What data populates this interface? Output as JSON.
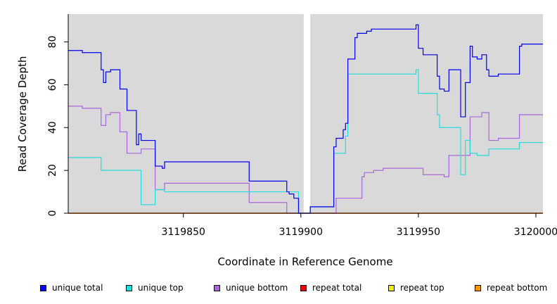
{
  "chart_data": {
    "type": "line",
    "title": "",
    "xlabel": "Coordinate in Reference Genome",
    "ylabel": "Read Coverage Depth",
    "xlim": [
      3119801,
      3120003
    ],
    "ylim": [
      0,
      93
    ],
    "x_ticks": [
      3119850,
      3119900,
      3119950,
      3120000
    ],
    "x_tick_labels": [
      "3119850",
      "3119900",
      "3119950",
      "3120000"
    ],
    "y_ticks": [
      0,
      20,
      40,
      60,
      80
    ],
    "y_tick_labels": [
      "0",
      "20",
      "40",
      "60",
      "80"
    ],
    "grid": false,
    "background": "#d9d9d9",
    "gap_band": [
      3119901.2,
      3119904
    ],
    "legend_position": "bottom",
    "series": [
      {
        "name": "unique total",
        "color": "#0000ee",
        "points": [
          [
            3119801,
            76
          ],
          [
            3119807,
            75
          ],
          [
            3119815,
            67
          ],
          [
            3119816,
            61
          ],
          [
            3119817,
            66
          ],
          [
            3119819,
            67
          ],
          [
            3119823,
            58
          ],
          [
            3119826,
            48
          ],
          [
            3119830,
            32
          ],
          [
            3119831,
            37
          ],
          [
            3119832,
            34
          ],
          [
            3119835,
            34
          ],
          [
            3119838,
            22
          ],
          [
            3119841,
            21
          ],
          [
            3119842,
            24
          ],
          [
            3119878,
            15
          ],
          [
            3119887,
            15
          ],
          [
            3119894,
            10
          ],
          [
            3119895,
            9
          ],
          [
            3119897,
            7
          ],
          [
            3119899,
            0
          ],
          [
            3119904,
            3
          ],
          [
            3119910,
            3
          ],
          [
            3119914,
            31
          ],
          [
            3119915,
            35
          ],
          [
            3119918,
            39
          ],
          [
            3119919,
            42
          ],
          [
            3119920,
            72
          ],
          [
            3119923,
            82
          ],
          [
            3119924,
            84
          ],
          [
            3119928,
            85
          ],
          [
            3119930,
            86
          ],
          [
            3119936,
            86
          ],
          [
            3119949,
            88
          ],
          [
            3119950,
            77
          ],
          [
            3119952,
            74
          ],
          [
            3119958,
            64
          ],
          [
            3119959,
            58
          ],
          [
            3119961,
            57
          ],
          [
            3119963,
            67
          ],
          [
            3119968,
            45
          ],
          [
            3119970,
            61
          ],
          [
            3119972,
            78
          ],
          [
            3119973,
            73
          ],
          [
            3119975,
            72
          ],
          [
            3119977,
            74
          ],
          [
            3119979,
            67
          ],
          [
            3119980,
            64
          ],
          [
            3119984,
            65
          ],
          [
            3119993,
            78
          ],
          [
            3119994,
            79
          ],
          [
            3120003,
            79
          ]
        ]
      },
      {
        "name": "unique top",
        "color": "#22dddd",
        "points": [
          [
            3119801,
            26
          ],
          [
            3119815,
            20
          ],
          [
            3119832,
            4
          ],
          [
            3119838,
            11
          ],
          [
            3119842,
            10
          ],
          [
            3119899,
            0
          ],
          [
            3119904,
            3
          ],
          [
            3119914,
            28
          ],
          [
            3119919,
            36
          ],
          [
            3119920,
            65
          ],
          [
            3119949,
            67
          ],
          [
            3119950,
            56
          ],
          [
            3119958,
            46
          ],
          [
            3119959,
            40
          ],
          [
            3119968,
            18
          ],
          [
            3119970,
            34
          ],
          [
            3119972,
            28
          ],
          [
            3119975,
            27
          ],
          [
            3119980,
            30
          ],
          [
            3119993,
            33
          ],
          [
            3120003,
            33
          ]
        ]
      },
      {
        "name": "unique bottom",
        "color": "#aa66dd",
        "points": [
          [
            3119801,
            50
          ],
          [
            3119807,
            49
          ],
          [
            3119815,
            41
          ],
          [
            3119817,
            46
          ],
          [
            3119819,
            47
          ],
          [
            3119823,
            38
          ],
          [
            3119826,
            28
          ],
          [
            3119832,
            30
          ],
          [
            3119838,
            11
          ],
          [
            3119842,
            14
          ],
          [
            3119878,
            5
          ],
          [
            3119894,
            0
          ],
          [
            3119904,
            0
          ],
          [
            3119915,
            7
          ],
          [
            3119926,
            17
          ],
          [
            3119927,
            19
          ],
          [
            3119931,
            20
          ],
          [
            3119935,
            21
          ],
          [
            3119952,
            18
          ],
          [
            3119961,
            17
          ],
          [
            3119963,
            27
          ],
          [
            3119972,
            45
          ],
          [
            3119977,
            47
          ],
          [
            3119980,
            34
          ],
          [
            3119984,
            35
          ],
          [
            3119993,
            46
          ],
          [
            3120003,
            46
          ]
        ]
      },
      {
        "name": "repeat total",
        "color": "#ee0000",
        "points": [
          [
            3119801,
            0
          ],
          [
            3120003,
            0
          ]
        ]
      },
      {
        "name": "repeat top",
        "color": "#eeee00",
        "points": [
          [
            3119801,
            0
          ],
          [
            3120003,
            0
          ]
        ]
      },
      {
        "name": "repeat bottom",
        "color": "#ff9900",
        "points": [
          [
            3119801,
            0
          ],
          [
            3120003,
            0
          ]
        ]
      }
    ]
  }
}
